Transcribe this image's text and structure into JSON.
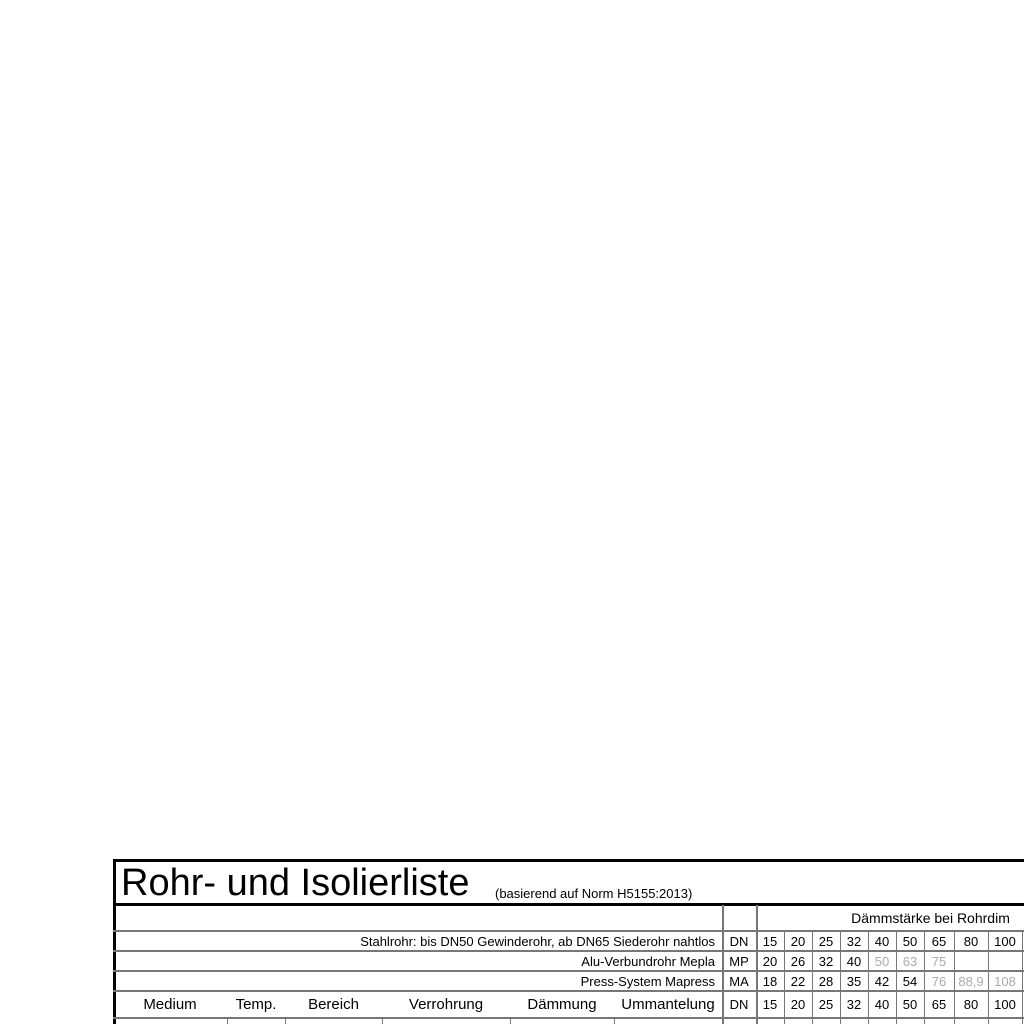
{
  "title": "Rohr- und Isolierliste",
  "subtitle": "(basierend auf Norm H5155:2013)",
  "group_header": "Dämmstärke bei Rohrdim",
  "pipe_rows": [
    {
      "label": "Stahlrohr: bis DN50 Gewinderohr, ab DN65 Siederohr nahtlos",
      "code": "DN",
      "sizes": [
        15,
        20,
        25,
        32,
        40,
        50,
        65,
        80,
        100
      ]
    },
    {
      "label": "Alu-Verbundrohr Mepla",
      "code": "MP",
      "sizes": [
        20,
        26,
        32,
        40,
        {
          "value": 50,
          "color": "#aaaaaa"
        },
        {
          "value": 63,
          "color": "#aaaaaa"
        },
        {
          "value": 75,
          "color": "#aaaaaa"
        }
      ]
    },
    {
      "label": "Press-System Mapress",
      "code": "MA",
      "sizes": [
        18,
        22,
        28,
        35,
        42,
        54,
        {
          "value": 76,
          "color": "#aaaaaa"
        },
        {
          "value": "88,9",
          "color": "#aaaaaa"
        },
        {
          "value": 108,
          "color": "#aaaaaa"
        }
      ]
    }
  ],
  "header": {
    "columns": [
      "Medium",
      "Temp.",
      "Bereich",
      "Verrohrung",
      "Dämmung",
      "Ummantelung"
    ],
    "code": "DN",
    "sizes": [
      15,
      20,
      25,
      32,
      40,
      50,
      65,
      80,
      100
    ]
  }
}
